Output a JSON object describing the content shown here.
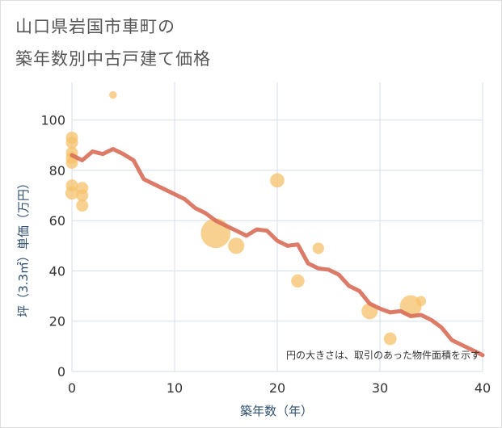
{
  "chart_data": {
    "type": "scatter",
    "title_lines": [
      "山口県岩国市車町の",
      "築年数別中古戸建て価格"
    ],
    "xlabel": "築年数（年）",
    "ylabel": "坪（3.3㎡）単価（万円）",
    "xlim": [
      0,
      40
    ],
    "ylim": [
      0,
      115
    ],
    "xticks": [
      0,
      10,
      20,
      30,
      40
    ],
    "yticks": [
      0,
      20,
      40,
      60,
      80,
      100
    ],
    "grid": true,
    "note": "円の大きさは、取引のあった物件面積を示す",
    "colors": {
      "bubble": "#f5c26b",
      "line": "#d9705a",
      "grid": "#d5dee8",
      "axis_text": "#2f4f6f"
    },
    "bubbles": [
      {
        "x": 0,
        "y": 93,
        "size": 1
      },
      {
        "x": 0,
        "y": 91,
        "size": 1
      },
      {
        "x": 0,
        "y": 87,
        "size": 1
      },
      {
        "x": 0,
        "y": 85,
        "size": 1
      },
      {
        "x": 0,
        "y": 83,
        "size": 1
      },
      {
        "x": 0,
        "y": 74,
        "size": 1
      },
      {
        "x": 0,
        "y": 71,
        "size": 1.2
      },
      {
        "x": 1,
        "y": 73,
        "size": 1
      },
      {
        "x": 1,
        "y": 70,
        "size": 1
      },
      {
        "x": 1,
        "y": 66,
        "size": 1
      },
      {
        "x": 4,
        "y": 110,
        "size": 0.4
      },
      {
        "x": 14,
        "y": 55,
        "size": 6
      },
      {
        "x": 16,
        "y": 50,
        "size": 1.8
      },
      {
        "x": 20,
        "y": 76,
        "size": 1.4
      },
      {
        "x": 22,
        "y": 36,
        "size": 1.2
      },
      {
        "x": 24,
        "y": 49,
        "size": 0.9
      },
      {
        "x": 29,
        "y": 24,
        "size": 1.8
      },
      {
        "x": 31,
        "y": 13,
        "size": 1.1
      },
      {
        "x": 33,
        "y": 26,
        "size": 3.2
      },
      {
        "x": 34,
        "y": 28,
        "size": 0.7
      }
    ],
    "trend": {
      "x": [
        0,
        1,
        2,
        3,
        4,
        5,
        6,
        7,
        8,
        9,
        10,
        11,
        12,
        13,
        14,
        15,
        16,
        17,
        18,
        19,
        20,
        21,
        22,
        23,
        24,
        25,
        26,
        27,
        28,
        29,
        30,
        31,
        32,
        33,
        34,
        35,
        36,
        37,
        38,
        39,
        40
      ],
      "y": [
        86,
        84,
        87.5,
        86.5,
        88.5,
        86.5,
        84,
        76.5,
        74.5,
        72.5,
        70.5,
        68.5,
        65,
        63,
        60,
        58,
        56,
        54,
        56.5,
        56,
        52,
        50,
        50.5,
        43,
        41,
        40.5,
        38.5,
        34,
        32,
        27,
        25,
        23.5,
        24,
        22,
        22.5,
        20.5,
        17.5,
        12.5,
        10.5,
        8.5,
        6.5
      ]
    }
  }
}
